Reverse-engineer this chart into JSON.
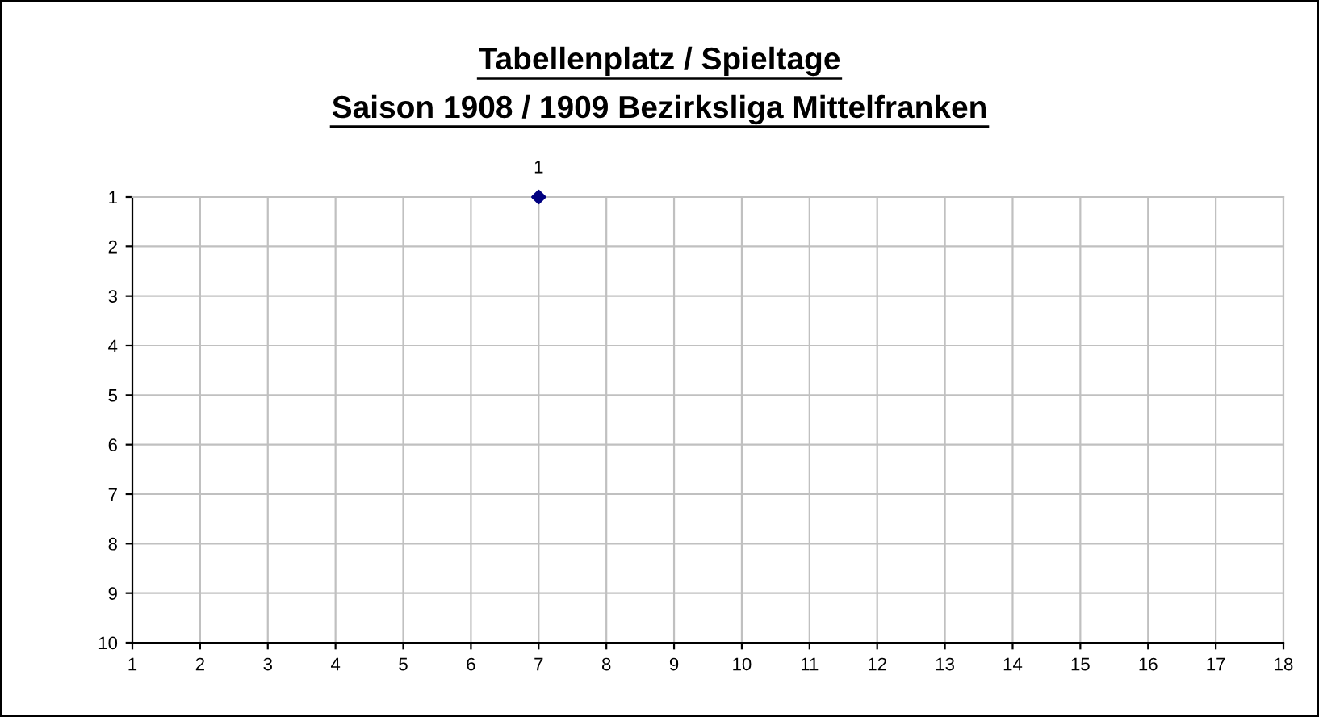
{
  "chart_data": {
    "type": "scatter",
    "title": "Tabellenplatz / Spieltage\nSaison 1908 / 1909 Bezirksliga Mittelfranken",
    "x": [
      7
    ],
    "series": [
      {
        "color": "#000080",
        "values": [
          1
        ]
      }
    ],
    "data_labels": true,
    "marker": "diamond",
    "xlim": [
      1,
      18
    ],
    "xticks": [
      1,
      2,
      3,
      4,
      5,
      6,
      7,
      8,
      9,
      10,
      11,
      12,
      13,
      14,
      15,
      16,
      17,
      18
    ],
    "ylim": [
      10,
      1
    ],
    "yticks": [
      1,
      2,
      3,
      4,
      5,
      6,
      7,
      8,
      9,
      10
    ],
    "grid": true
  }
}
